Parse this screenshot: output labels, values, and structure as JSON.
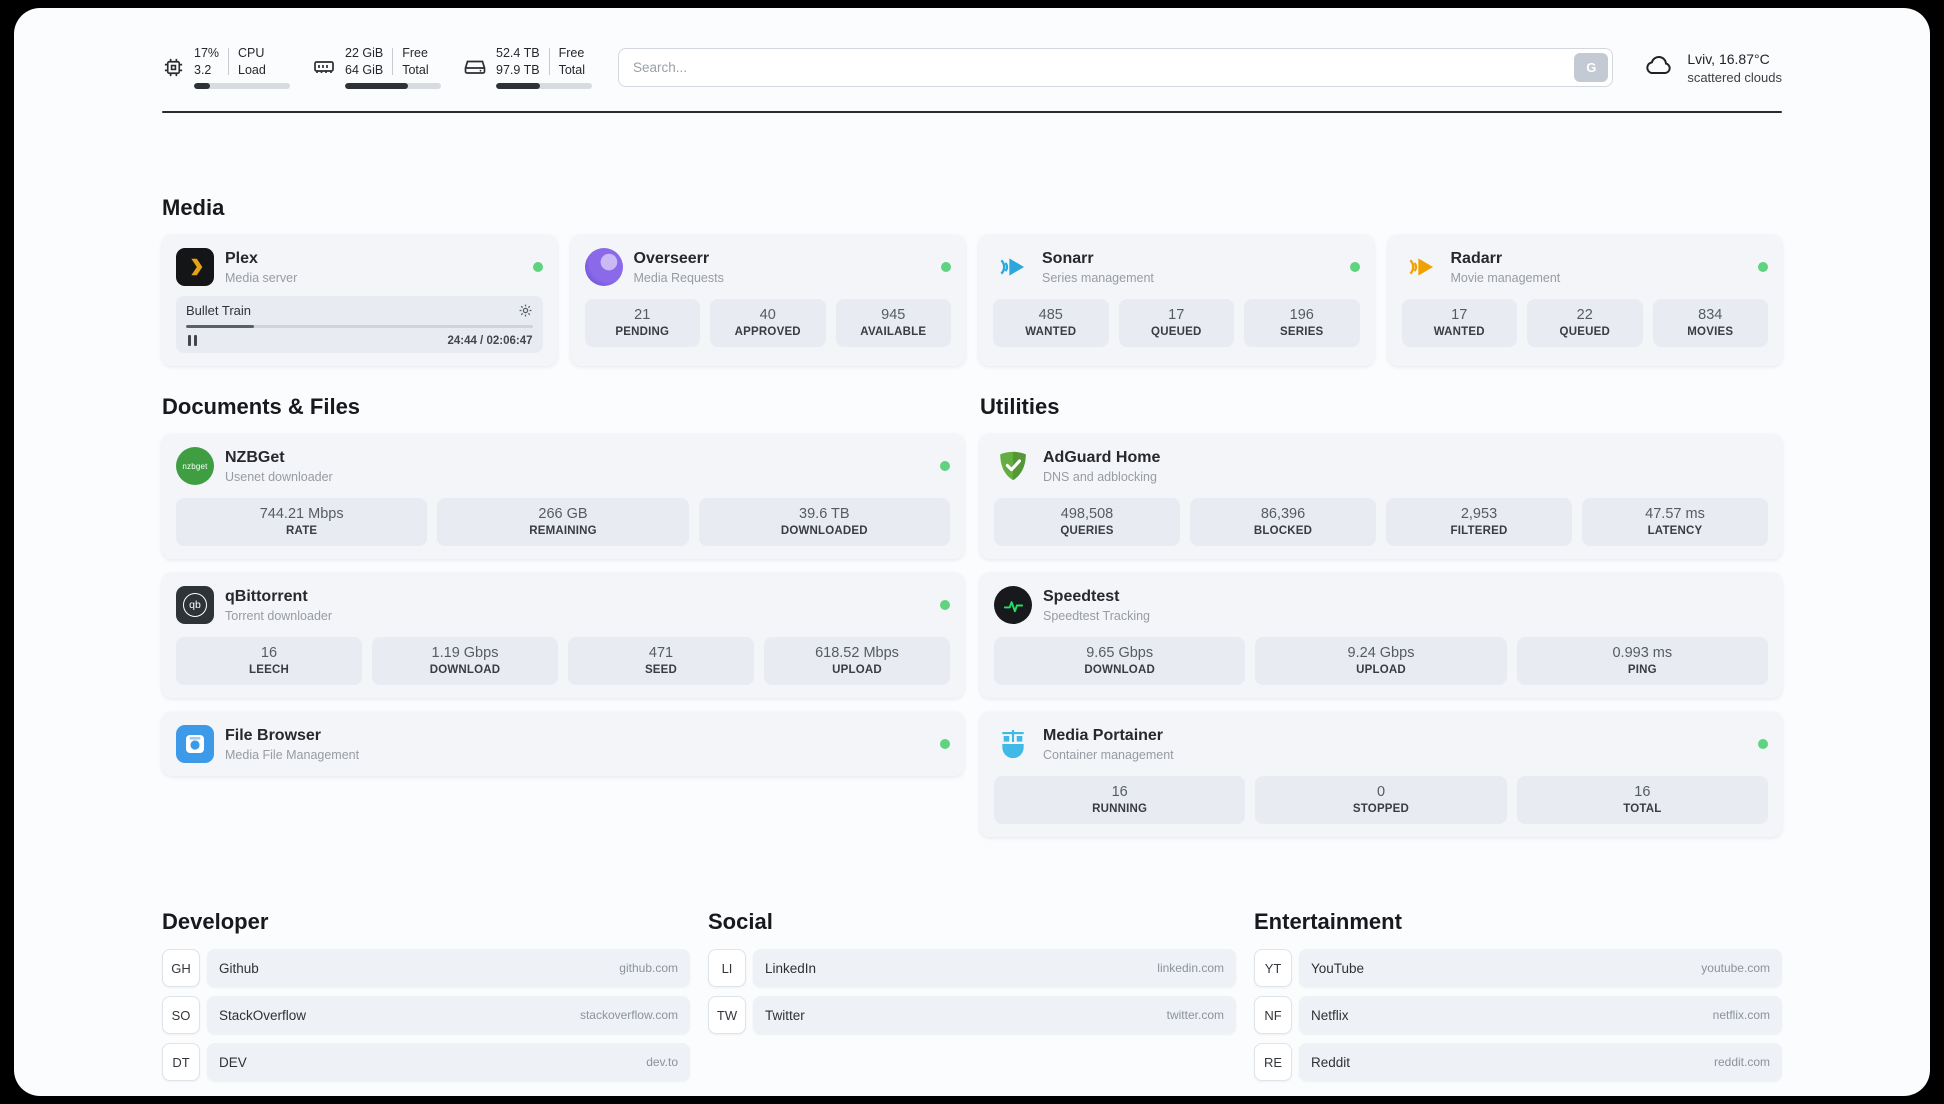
{
  "header": {
    "cpu": {
      "line1": "17%",
      "line2": "3.2",
      "label1": "CPU",
      "label2": "Load",
      "progress": 17
    },
    "ram": {
      "line1": "22 GiB",
      "line2": "64 GiB",
      "label1": "Free",
      "label2": "Total",
      "progress": 66
    },
    "disk": {
      "line1": "52.4 TB",
      "line2": "97.9 TB",
      "label1": "Free",
      "label2": "Total",
      "progress": 46
    },
    "search": {
      "placeholder": "Search...",
      "button_label": "G"
    },
    "weather": {
      "location": "Lviv, 16.87°C",
      "condition": "scattered clouds"
    }
  },
  "sections": {
    "media": {
      "title": "Media"
    },
    "documents": {
      "title": "Documents & Files"
    },
    "utilities": {
      "title": "Utilities"
    },
    "developer": {
      "title": "Developer"
    },
    "social": {
      "title": "Social"
    },
    "entertainment": {
      "title": "Entertainment"
    }
  },
  "apps": {
    "plex": {
      "name": "Plex",
      "subtitle": "Media server",
      "now_playing": "Bullet Train",
      "time": "24:44 / 02:06:47",
      "progress": 19.5
    },
    "overseerr": {
      "name": "Overseerr",
      "subtitle": "Media Requests",
      "stats": [
        {
          "value": "21",
          "label": "PENDING"
        },
        {
          "value": "40",
          "label": "APPROVED"
        },
        {
          "value": "945",
          "label": "AVAILABLE"
        }
      ]
    },
    "sonarr": {
      "name": "Sonarr",
      "subtitle": "Series management",
      "stats": [
        {
          "value": "485",
          "label": "WANTED"
        },
        {
          "value": "17",
          "label": "QUEUED"
        },
        {
          "value": "196",
          "label": "SERIES"
        }
      ]
    },
    "radarr": {
      "name": "Radarr",
      "subtitle": "Movie management",
      "stats": [
        {
          "value": "17",
          "label": "WANTED"
        },
        {
          "value": "22",
          "label": "QUEUED"
        },
        {
          "value": "834",
          "label": "MOVIES"
        }
      ]
    },
    "nzbget": {
      "name": "NZBGet",
      "subtitle": "Usenet downloader",
      "icon_text": "nzbget",
      "stats": [
        {
          "value": "744.21 Mbps",
          "label": "RATE"
        },
        {
          "value": "266 GB",
          "label": "REMAINING"
        },
        {
          "value": "39.6 TB",
          "label": "DOWNLOADED"
        }
      ]
    },
    "adguard": {
      "name": "AdGuard Home",
      "subtitle": "DNS and adblocking",
      "stats": [
        {
          "value": "498,508",
          "label": "QUERIES"
        },
        {
          "value": "86,396",
          "label": "BLOCKED"
        },
        {
          "value": "2,953",
          "label": "FILTERED"
        },
        {
          "value": "47.57 ms",
          "label": "LATENCY"
        }
      ]
    },
    "qbittorrent": {
      "name": "qBittorrent",
      "subtitle": "Torrent downloader",
      "icon_text": "qb",
      "stats": [
        {
          "value": "16",
          "label": "LEECH"
        },
        {
          "value": "1.19 Gbps",
          "label": "DOWNLOAD"
        },
        {
          "value": "471",
          "label": "SEED"
        },
        {
          "value": "618.52 Mbps",
          "label": "UPLOAD"
        }
      ]
    },
    "speedtest": {
      "name": "Speedtest",
      "subtitle": "Speedtest Tracking",
      "stats": [
        {
          "value": "9.65 Gbps",
          "label": "DOWNLOAD"
        },
        {
          "value": "9.24 Gbps",
          "label": "UPLOAD"
        },
        {
          "value": "0.993 ms",
          "label": "PING"
        }
      ]
    },
    "filebrowser": {
      "name": "File Browser",
      "subtitle": "Media File Management"
    },
    "portainer": {
      "name": "Media Portainer",
      "subtitle": "Container management",
      "stats": [
        {
          "value": "16",
          "label": "RUNNING"
        },
        {
          "value": "0",
          "label": "STOPPED"
        },
        {
          "value": "16",
          "label": "TOTAL"
        }
      ]
    }
  },
  "bookmarks": {
    "developer": [
      {
        "abbr": "GH",
        "name": "Github",
        "url": "github.com"
      },
      {
        "abbr": "SO",
        "name": "StackOverflow",
        "url": "stackoverflow.com"
      },
      {
        "abbr": "DT",
        "name": "DEV",
        "url": "dev.to"
      }
    ],
    "social": [
      {
        "abbr": "LI",
        "name": "LinkedIn",
        "url": "linkedin.com"
      },
      {
        "abbr": "TW",
        "name": "Twitter",
        "url": "twitter.com"
      }
    ],
    "entertainment": [
      {
        "abbr": "YT",
        "name": "YouTube",
        "url": "youtube.com"
      },
      {
        "abbr": "NF",
        "name": "Netflix",
        "url": "netflix.com"
      },
      {
        "abbr": "RE",
        "name": "Reddit",
        "url": "reddit.com"
      }
    ]
  },
  "icons": [
    "cpu-icon",
    "ram-icon",
    "disk-icon",
    "search-go-icon",
    "cloud-icon",
    "gear-icon",
    "pause-icon",
    "plex-icon",
    "overseerr-icon",
    "sonarr-icon",
    "radarr-icon",
    "nzbget-icon",
    "adguard-icon",
    "qbittorrent-icon",
    "speedtest-icon",
    "filebrowser-icon",
    "portainer-icon"
  ],
  "colors": {
    "status_online": "#5fd37f",
    "divider": "#292c30",
    "card_bg": "#f3f5f8",
    "stat_bg": "#e8ecf2",
    "plex_gold": "#e6a217",
    "overseerr_purple": "#6a4fd0",
    "sonarr_blue": "#2ba7de",
    "radarr_amber": "#f0a202",
    "nzbget_green": "#3f9e42",
    "adguard_green": "#63ad41",
    "speedtest_green": "#21e065",
    "filebrowser_blue": "#3d9ae8",
    "portainer_blue": "#41b9e6"
  }
}
